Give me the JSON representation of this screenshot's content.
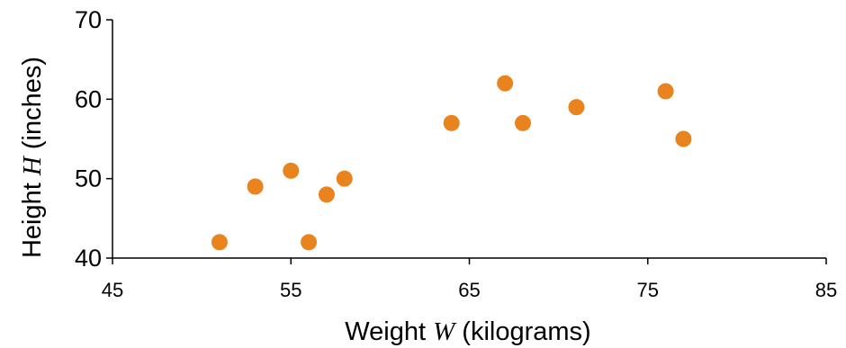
{
  "chart_data": {
    "type": "scatter",
    "title": "",
    "x_label_parts": [
      "Weight ",
      "W",
      " (kilograms)"
    ],
    "y_label_parts": [
      "Height ",
      "H",
      " (inches)"
    ],
    "xlim": [
      45,
      85
    ],
    "ylim": [
      40,
      70
    ],
    "x_ticks": [
      "45",
      "55",
      "65",
      "75",
      "85"
    ],
    "y_ticks": [
      "40",
      "50",
      "60",
      "70"
    ],
    "grid": false,
    "legend": false,
    "marker_color": "#E8831D",
    "axis_color": "#000000",
    "points": [
      {
        "x": 51,
        "y": 42
      },
      {
        "x": 53,
        "y": 49
      },
      {
        "x": 55,
        "y": 51
      },
      {
        "x": 56,
        "y": 42
      },
      {
        "x": 57,
        "y": 48
      },
      {
        "x": 58,
        "y": 50
      },
      {
        "x": 64,
        "y": 57
      },
      {
        "x": 67,
        "y": 62
      },
      {
        "x": 68,
        "y": 57
      },
      {
        "x": 71,
        "y": 59
      },
      {
        "x": 76,
        "y": 61
      },
      {
        "x": 77,
        "y": 55
      }
    ]
  }
}
